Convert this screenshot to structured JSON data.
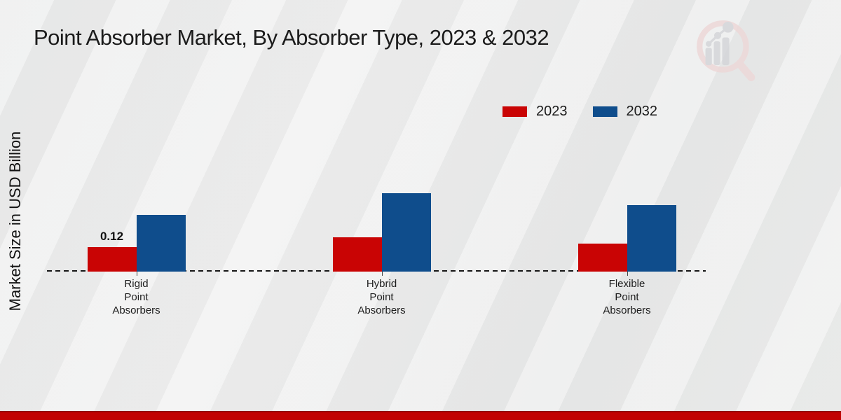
{
  "page": {
    "title": "Point Absorber Market, By Absorber Type, 2023 & 2032"
  },
  "icons": {
    "logo_icon": "magnifier-bar-chart-watermark"
  },
  "branding": {
    "bottom_bar_color": "#c10202"
  },
  "chart_data": {
    "type": "bar",
    "title": "Point Absorber Market, By Absorber Type, 2023 & 2032",
    "xlabel": "",
    "ylabel": "Market Size in USD Billion",
    "categories": [
      "Rigid Point Absorbers",
      "Hybrid Point Absorbers",
      "Flexible Point Absorbers"
    ],
    "series": [
      {
        "name": "2023",
        "color": "#c90404",
        "values": [
          0.12,
          0.17,
          0.14
        ]
      },
      {
        "name": "2032",
        "color": "#0f4d8c",
        "values": [
          0.28,
          0.39,
          0.33
        ]
      }
    ],
    "data_labels": [
      {
        "series_index": 0,
        "category_index": 0,
        "text": "0.12"
      }
    ],
    "ylim": [
      0,
      0.45
    ],
    "grid": false,
    "baseline": "dashed",
    "legend_position": "top-right"
  }
}
